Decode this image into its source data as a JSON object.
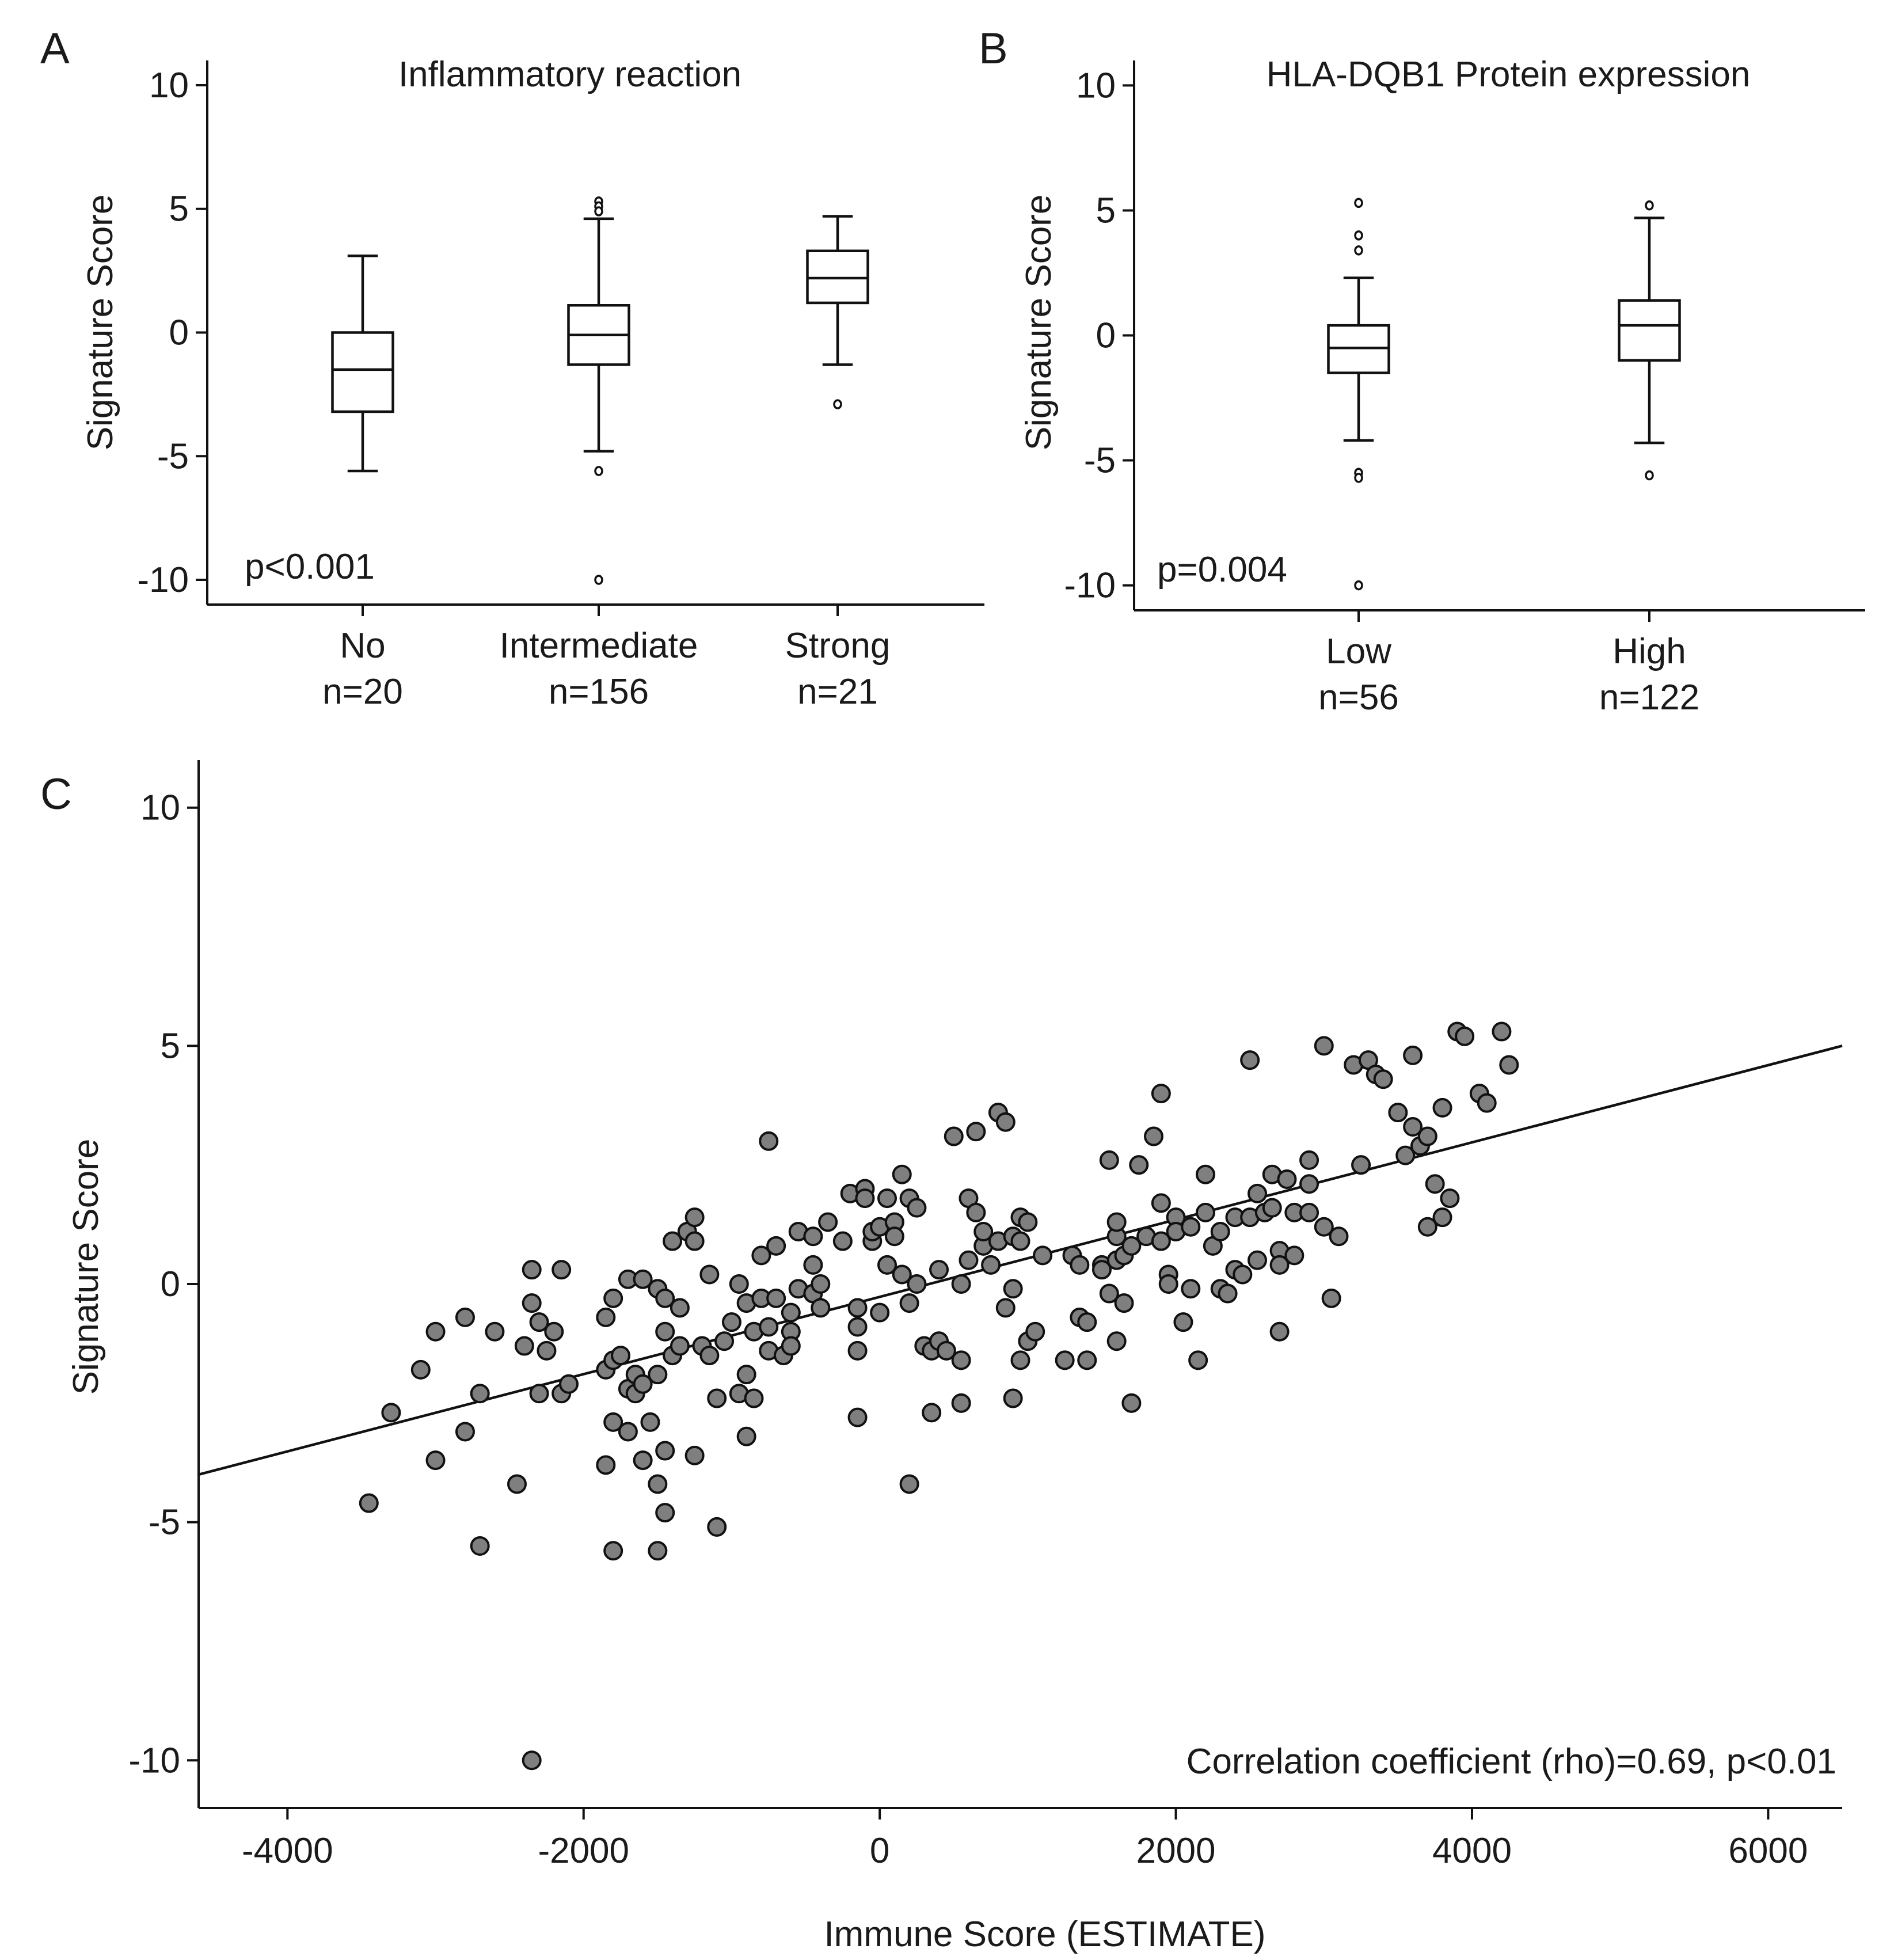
{
  "chart_data": [
    {
      "panel": "A",
      "type": "box",
      "title": "Inflammatory reaction",
      "ylabel": "Signature Score",
      "ylim": [
        -11,
        11
      ],
      "yticks": [
        10,
        5,
        0,
        -5,
        -10
      ],
      "annotation": "p<0.001",
      "groups": [
        {
          "name": "No",
          "n": "n=20",
          "q1": -3.2,
          "median": -1.5,
          "q3": 0.0,
          "whisker_low": -5.6,
          "whisker_high": 3.1,
          "outliers": []
        },
        {
          "name": "Intermediate",
          "n": "n=156",
          "q1": -1.3,
          "median": -0.1,
          "q3": 1.1,
          "whisker_low": -4.8,
          "whisker_high": 4.6,
          "outliers": [
            5.3,
            5.1,
            4.9,
            -5.6,
            -10.0
          ]
        },
        {
          "name": "Strong",
          "n": "n=21",
          "q1": 1.2,
          "median": 2.2,
          "q3": 3.3,
          "whisker_low": -1.3,
          "whisker_high": 4.7,
          "outliers": [
            -2.9
          ]
        }
      ]
    },
    {
      "panel": "B",
      "type": "box",
      "title": "HLA-DQB1 Protein expression",
      "ylabel": "Signature Score",
      "ylim": [
        -11,
        11
      ],
      "yticks": [
        10,
        5,
        0,
        -5,
        -10
      ],
      "annotation": "p=0.004",
      "groups": [
        {
          "name": "Low",
          "n": "n=56",
          "q1": -1.5,
          "median": -0.5,
          "q3": 0.4,
          "whisker_low": -4.2,
          "whisker_high": 2.3,
          "outliers": [
            5.3,
            4.0,
            3.4,
            -5.5,
            -5.7,
            -10.0
          ]
        },
        {
          "name": "High",
          "n": "n=122",
          "q1": -1.0,
          "median": 0.4,
          "q3": 1.4,
          "whisker_low": -4.3,
          "whisker_high": 4.7,
          "outliers": [
            5.2,
            -5.6
          ]
        }
      ]
    },
    {
      "panel": "C",
      "type": "scatter",
      "xlabel": "Immune Score (ESTIMATE)",
      "ylabel": "Signature Score",
      "xlim": [
        -4600,
        6500
      ],
      "ylim": [
        -11,
        11
      ],
      "xticks": [
        -4000,
        -2000,
        0,
        2000,
        4000,
        6000
      ],
      "yticks": [
        10,
        5,
        0,
        -5,
        -10
      ],
      "annotation": "Correlation coefficient (rho)=0.69, p<0.01",
      "fit_line": {
        "x": [
          -4600,
          6500
        ],
        "y": [
          -4.0,
          5.0
        ]
      },
      "points": [
        [
          -3450,
          -4.6
        ],
        [
          -3300,
          -2.7
        ],
        [
          -3100,
          -1.8
        ],
        [
          -3000,
          -1.0
        ],
        [
          -3000,
          -3.7
        ],
        [
          -2800,
          -0.7
        ],
        [
          -2800,
          -3.1
        ],
        [
          -2700,
          -2.3
        ],
        [
          -2700,
          -5.5
        ],
        [
          -2600,
          -1.0
        ],
        [
          -2450,
          -4.2
        ],
        [
          -2400,
          -1.3
        ],
        [
          -2350,
          -10.0
        ],
        [
          -2350,
          0.3
        ],
        [
          -2350,
          -0.4
        ],
        [
          -2300,
          -0.8
        ],
        [
          -2300,
          -2.3
        ],
        [
          -2250,
          -1.4
        ],
        [
          -2200,
          -1.0
        ],
        [
          -2150,
          0.3
        ],
        [
          -2150,
          -2.3
        ],
        [
          -2100,
          -2.1
        ],
        [
          -1850,
          -0.7
        ],
        [
          -1850,
          -1.8
        ],
        [
          -1850,
          -3.8
        ],
        [
          -1800,
          -0.3
        ],
        [
          -1800,
          -1.6
        ],
        [
          -1800,
          -2.9
        ],
        [
          -1800,
          -5.6
        ],
        [
          -1750,
          -1.5
        ],
        [
          -1700,
          0.1
        ],
        [
          -1700,
          -2.2
        ],
        [
          -1700,
          -3.1
        ],
        [
          -1650,
          -1.9
        ],
        [
          -1650,
          -2.3
        ],
        [
          -1600,
          0.1
        ],
        [
          -1600,
          -2.1
        ],
        [
          -1600,
          -3.7
        ],
        [
          -1550,
          -2.9
        ],
        [
          -1500,
          -0.1
        ],
        [
          -1500,
          -1.9
        ],
        [
          -1500,
          -4.2
        ],
        [
          -1500,
          -5.6
        ],
        [
          -1450,
          -0.3
        ],
        [
          -1450,
          -1.0
        ],
        [
          -1450,
          -3.5
        ],
        [
          -1450,
          -4.8
        ],
        [
          -1400,
          0.9
        ],
        [
          -1400,
          -1.5
        ],
        [
          -1350,
          -0.5
        ],
        [
          -1350,
          -1.3
        ],
        [
          -1300,
          1.1
        ],
        [
          -1250,
          0.9
        ],
        [
          -1250,
          1.4
        ],
        [
          -1250,
          -3.6
        ],
        [
          -1200,
          -1.3
        ],
        [
          -1150,
          -1.5
        ],
        [
          -1150,
          0.2
        ],
        [
          -1100,
          -2.4
        ],
        [
          -1100,
          -5.1
        ],
        [
          -1050,
          -1.2
        ],
        [
          -1000,
          -0.8
        ],
        [
          -950,
          -2.3
        ],
        [
          -950,
          0.0
        ],
        [
          -900,
          -0.4
        ],
        [
          -900,
          -1.9
        ],
        [
          -900,
          -3.2
        ],
        [
          -850,
          -1.0
        ],
        [
          -850,
          -2.4
        ],
        [
          -800,
          0.6
        ],
        [
          -800,
          -0.3
        ],
        [
          -750,
          -0.9
        ],
        [
          -750,
          -1.4
        ],
        [
          -750,
          3.0
        ],
        [
          -700,
          0.8
        ],
        [
          -700,
          -0.3
        ],
        [
          -650,
          -1.5
        ],
        [
          -600,
          -0.6
        ],
        [
          -600,
          -1.0
        ],
        [
          -600,
          -1.3
        ],
        [
          -550,
          -0.1
        ],
        [
          -550,
          1.1
        ],
        [
          -450,
          1.0
        ],
        [
          -450,
          -0.2
        ],
        [
          -450,
          0.4
        ],
        [
          -400,
          -0.5
        ],
        [
          -400,
          0.0
        ],
        [
          -350,
          1.3
        ],
        [
          -250,
          0.9
        ],
        [
          -200,
          1.9
        ],
        [
          -150,
          -0.5
        ],
        [
          -150,
          -0.9
        ],
        [
          -150,
          -1.4
        ],
        [
          -150,
          -2.8
        ],
        [
          -100,
          2.0
        ],
        [
          -100,
          1.8
        ],
        [
          -50,
          0.9
        ],
        [
          -50,
          1.1
        ],
        [
          0,
          -0.6
        ],
        [
          0,
          1.2
        ],
        [
          50,
          0.4
        ],
        [
          50,
          1.8
        ],
        [
          100,
          1.3
        ],
        [
          100,
          1.0
        ],
        [
          150,
          2.3
        ],
        [
          150,
          0.2
        ],
        [
          200,
          1.8
        ],
        [
          200,
          -0.4
        ],
        [
          200,
          -4.2
        ],
        [
          250,
          1.6
        ],
        [
          250,
          0.0
        ],
        [
          300,
          -1.3
        ],
        [
          350,
          -2.7
        ],
        [
          350,
          -1.4
        ],
        [
          400,
          -1.2
        ],
        [
          400,
          0.3
        ],
        [
          450,
          -1.4
        ],
        [
          500,
          3.1
        ],
        [
          550,
          0.0
        ],
        [
          550,
          -1.6
        ],
        [
          550,
          -2.5
        ],
        [
          600,
          0.5
        ],
        [
          600,
          1.8
        ],
        [
          650,
          1.5
        ],
        [
          650,
          3.2
        ],
        [
          700,
          0.8
        ],
        [
          700,
          1.1
        ],
        [
          750,
          0.4
        ],
        [
          800,
          3.6
        ],
        [
          800,
          0.9
        ],
        [
          850,
          3.4
        ],
        [
          850,
          -0.5
        ],
        [
          900,
          1.0
        ],
        [
          900,
          -0.1
        ],
        [
          900,
          -2.4
        ],
        [
          950,
          1.4
        ],
        [
          950,
          0.9
        ],
        [
          950,
          -1.6
        ],
        [
          1000,
          1.3
        ],
        [
          1000,
          -1.2
        ],
        [
          1050,
          -1.0
        ],
        [
          1100,
          0.6
        ],
        [
          1250,
          -1.6
        ],
        [
          1300,
          0.6
        ],
        [
          1350,
          0.4
        ],
        [
          1350,
          -0.7
        ],
        [
          1400,
          -0.8
        ],
        [
          1400,
          -1.6
        ],
        [
          1500,
          0.4
        ],
        [
          1500,
          0.3
        ],
        [
          1550,
          2.6
        ],
        [
          1550,
          -0.2
        ],
        [
          1600,
          1.0
        ],
        [
          1600,
          1.3
        ],
        [
          1600,
          0.5
        ],
        [
          1600,
          -1.2
        ],
        [
          1650,
          0.6
        ],
        [
          1650,
          -0.4
        ],
        [
          1700,
          0.8
        ],
        [
          1700,
          -2.5
        ],
        [
          1750,
          2.5
        ],
        [
          1800,
          1.0
        ],
        [
          1850,
          3.1
        ],
        [
          1900,
          4.0
        ],
        [
          1900,
          1.7
        ],
        [
          1900,
          0.9
        ],
        [
          1950,
          0.2
        ],
        [
          1950,
          0.0
        ],
        [
          2000,
          1.4
        ],
        [
          2000,
          1.1
        ],
        [
          2050,
          -0.8
        ],
        [
          2100,
          1.2
        ],
        [
          2100,
          -0.1
        ],
        [
          2150,
          -1.6
        ],
        [
          2200,
          2.3
        ],
        [
          2200,
          1.5
        ],
        [
          2250,
          0.8
        ],
        [
          2300,
          1.1
        ],
        [
          2300,
          -0.1
        ],
        [
          2350,
          -0.2
        ],
        [
          2400,
          1.4
        ],
        [
          2400,
          0.3
        ],
        [
          2450,
          0.2
        ],
        [
          2500,
          4.7
        ],
        [
          2500,
          1.4
        ],
        [
          2550,
          1.9
        ],
        [
          2550,
          0.5
        ],
        [
          2600,
          1.5
        ],
        [
          2650,
          2.3
        ],
        [
          2650,
          1.6
        ],
        [
          2700,
          0.7
        ],
        [
          2700,
          0.4
        ],
        [
          2700,
          -1.0
        ],
        [
          2750,
          2.2
        ],
        [
          2800,
          1.5
        ],
        [
          2800,
          0.6
        ],
        [
          2900,
          2.6
        ],
        [
          2900,
          2.1
        ],
        [
          2900,
          1.5
        ],
        [
          3000,
          5.0
        ],
        [
          3000,
          1.2
        ],
        [
          3050,
          -0.3
        ],
        [
          3100,
          1.0
        ],
        [
          3200,
          4.6
        ],
        [
          3250,
          2.5
        ],
        [
          3300,
          4.7
        ],
        [
          3350,
          4.4
        ],
        [
          3400,
          4.3
        ],
        [
          3500,
          3.6
        ],
        [
          3550,
          2.7
        ],
        [
          3600,
          4.8
        ],
        [
          3600,
          3.3
        ],
        [
          3650,
          2.9
        ],
        [
          3700,
          1.2
        ],
        [
          3700,
          3.1
        ],
        [
          3750,
          2.1
        ],
        [
          3800,
          3.7
        ],
        [
          3800,
          1.4
        ],
        [
          3850,
          1.8
        ],
        [
          3900,
          5.3
        ],
        [
          3950,
          5.2
        ],
        [
          4050,
          4.0
        ],
        [
          4100,
          3.8
        ],
        [
          4200,
          5.3
        ],
        [
          4250,
          4.6
        ]
      ]
    }
  ]
}
